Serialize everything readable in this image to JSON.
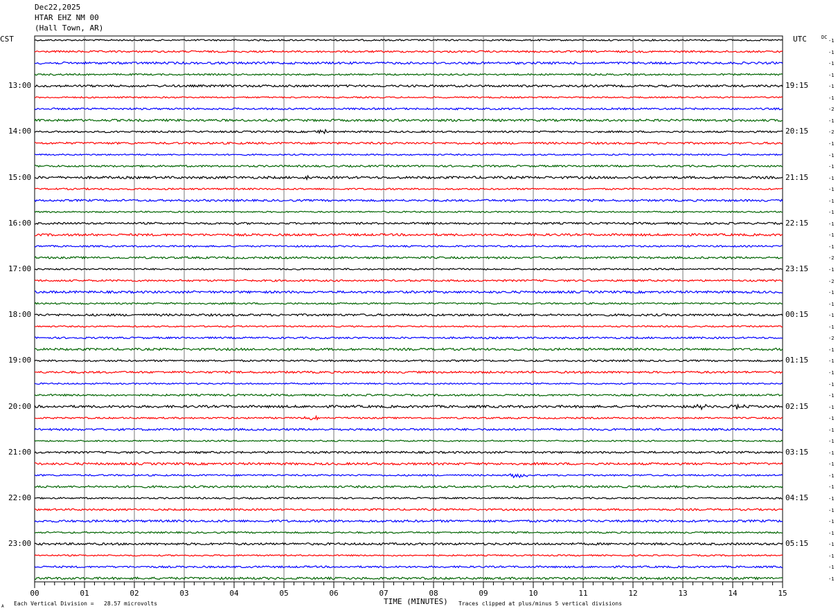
{
  "header": {
    "date": "Dec22,2025",
    "station": "HTAR EHZ NM 00",
    "location": "(Hall Town, AR)"
  },
  "chart_data": {
    "type": "line",
    "title": "Dec22,2025",
    "xlabel": "TIME (MINUTES)",
    "xlim": [
      0,
      15
    ],
    "x_tick_labels": [
      "00",
      "01",
      "02",
      "03",
      "04",
      "05",
      "06",
      "07",
      "08",
      "09",
      "10",
      "11",
      "12",
      "13",
      "14",
      "15"
    ],
    "left_axis_label": "CST",
    "right_axis_label": "UTC",
    "left_time_labels": [
      "13:00",
      "14:00",
      "15:00",
      "16:00",
      "17:00",
      "18:00",
      "19:00",
      "20:00",
      "21:00",
      "22:00",
      "23:00"
    ],
    "right_time_labels": [
      "19:15",
      "20:15",
      "21:15",
      "22:15",
      "23:15",
      "00:15",
      "01:15",
      "02:15",
      "03:15",
      "04:15",
      "05:15"
    ],
    "dc_header": "DC",
    "dc_offsets": [
      "-1",
      "-1",
      "-1",
      "-1",
      "-1",
      "-1",
      "-2",
      "-1",
      "-2",
      "-1",
      "-1",
      "-1",
      "-1",
      "-1",
      "-1",
      "-1",
      "-1",
      "-1",
      "-1",
      "-2",
      "-1",
      "-2",
      "-1",
      "-1",
      "-1",
      "-1",
      "-2",
      "-1",
      "-1",
      "-1",
      "-1",
      "-1",
      "-1",
      "-1",
      "-1",
      "-1",
      "-1",
      "-1",
      "-1",
      "-1",
      "-1",
      "-1",
      "-1",
      "-1",
      "-1",
      "-1",
      "-1",
      "-1"
    ],
    "trace_colors": [
      "#000000",
      "#ff0000",
      "#0000ff",
      "#006400"
    ],
    "trace_count": 48,
    "trace_interval_minutes": 15,
    "clip_divisions": 5,
    "events": [
      {
        "trace": 8,
        "minute": 5.8
      },
      {
        "trace": 12,
        "minute": 5.5
      },
      {
        "trace": 33,
        "minute": 5.6
      },
      {
        "trace": 32,
        "minute": 13.3
      },
      {
        "trace": 32,
        "minute": 14.1
      },
      {
        "trace": 38,
        "minute": 9.7
      }
    ]
  },
  "footer": {
    "scale_note": "Each Vertical Division =   28.57 microvolts",
    "clip_note": "Traces clipped at plus/minus 5 vertical divisions",
    "corner_mark": "A"
  }
}
